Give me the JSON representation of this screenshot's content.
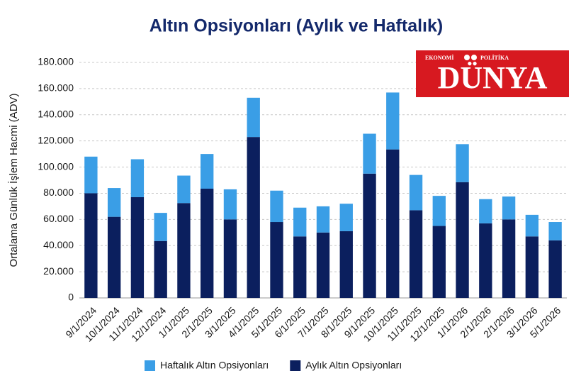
{
  "chart_data": {
    "type": "stacked_bar",
    "title": "Altın Opsiyonları (Aylık ve Haftalık)",
    "y_label": "Ortalama Günlük İşlem Hacmi (ADV)",
    "categories": [
      "9/1/2024",
      "10/1/2024",
      "11/1/2024",
      "12/1/2024",
      "1/1/2025",
      "2/1/2025",
      "3/1/2025",
      "4/1/2025",
      "5/1/2025",
      "6/1/2025",
      "7/1/2025",
      "8/1/2025",
      "9/1/2025",
      "10/1/2025",
      "11/1/2025",
      "12/1/2025",
      "1/1/2026",
      "2/1/2026",
      "2/1/2026",
      "3/1/2026",
      "5/1/2026"
    ],
    "series": [
      {
        "name": "Haftalık Altın Opsiyonları",
        "color": "#3a9ee6",
        "values": [
          28000,
          22000,
          29000,
          21500,
          21000,
          26500,
          23000,
          30000,
          24000,
          22000,
          20000,
          21000,
          30500,
          43500,
          27000,
          23000,
          29000,
          18500,
          17500,
          16500,
          14000
        ]
      },
      {
        "name": "Aylık Altın Opsiyonları",
        "color": "#0b1f5e",
        "values": [
          80000,
          62000,
          77000,
          43500,
          72500,
          83500,
          60000,
          123000,
          58000,
          47000,
          50000,
          51000,
          95000,
          113500,
          67000,
          55000,
          88500,
          57000,
          60000,
          47000,
          44000
        ]
      }
    ],
    "ylim": [
      0,
      180000
    ],
    "yticks": [
      0,
      {
        "value": 20000,
        "label": "20.000"
      },
      {
        "value": 40000,
        "label": "40.000"
      },
      {
        "value": 60000,
        "label": "60.000"
      },
      {
        "value": 80000,
        "label": "80.000"
      },
      {
        "value": 100000,
        "label": "100.000"
      },
      {
        "value": 120000,
        "label": "120.000"
      },
      {
        "value": 140000,
        "label": "140.000"
      },
      {
        "value": 160000,
        "label": "160.000"
      },
      {
        "value": 180000,
        "label": "180.000"
      }
    ],
    "grid": true,
    "legend": "bottom"
  },
  "logo": {
    "top_left": "EKONOMİ",
    "top_right": "POLİTİKA",
    "name": "DÜNYA"
  }
}
